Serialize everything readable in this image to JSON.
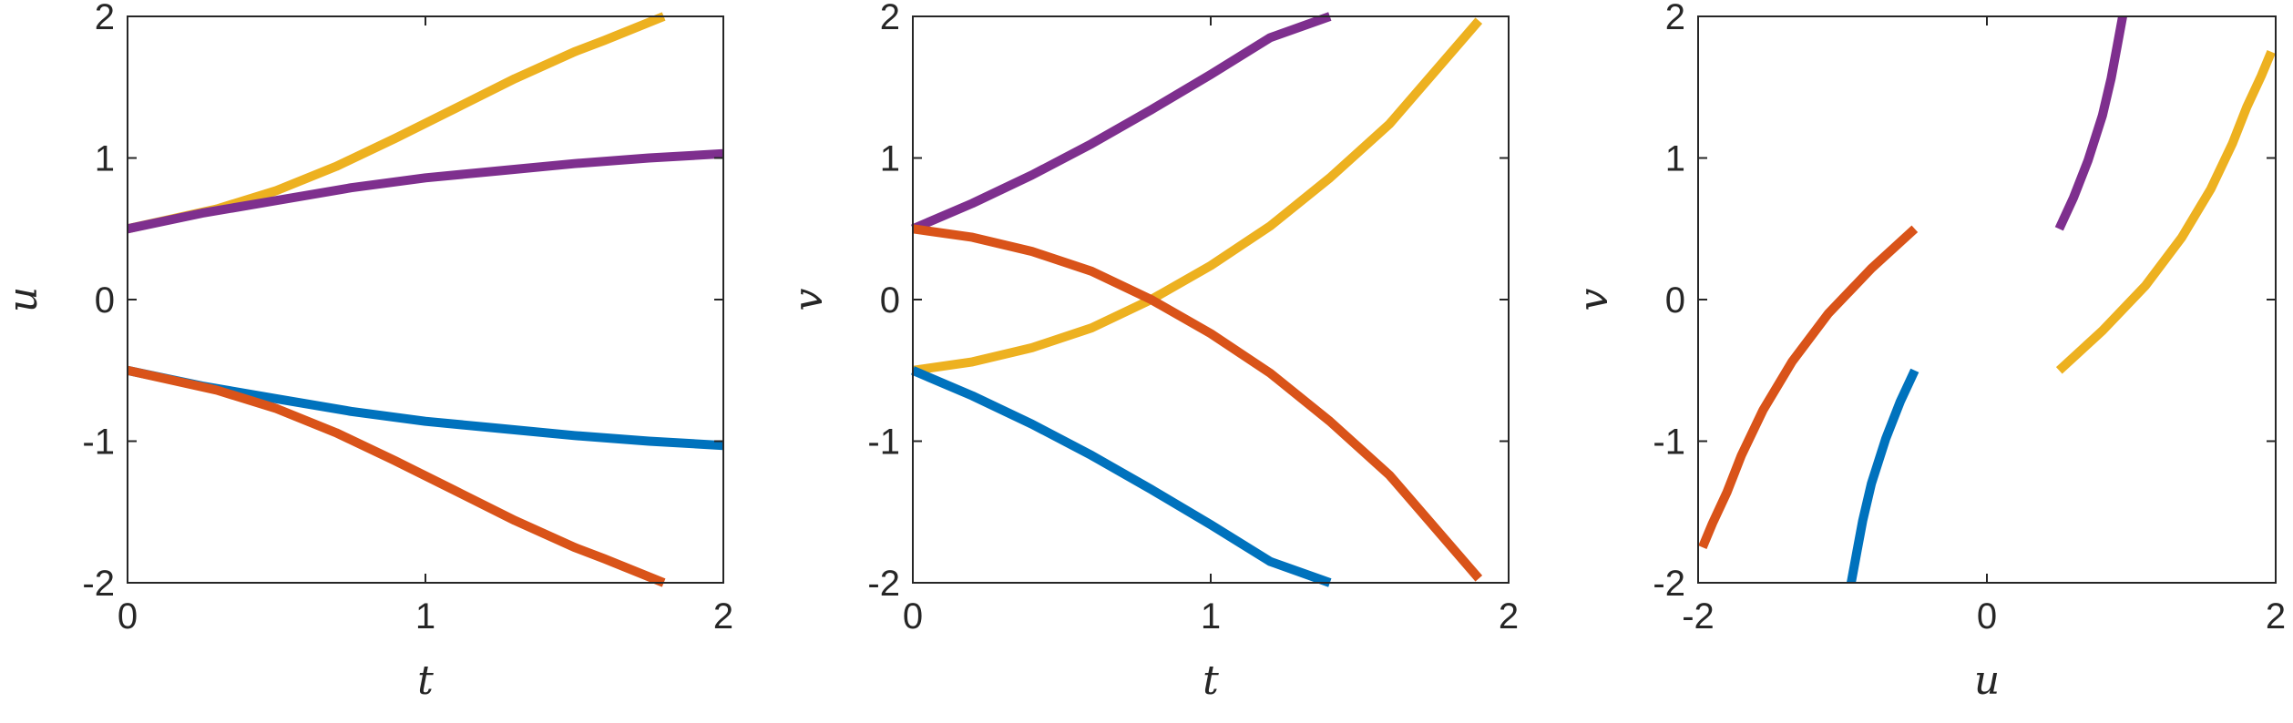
{
  "colors": {
    "blue": "#0072BD",
    "orange": "#D95319",
    "yellow": "#EDB120",
    "purple": "#7E2F8E"
  },
  "chart_data": [
    {
      "type": "line",
      "xlabel": "t",
      "ylabel": "u",
      "xlim": [
        0,
        2
      ],
      "ylim": [
        -2,
        2
      ],
      "xticks": [
        0,
        1,
        2
      ],
      "xtick_labels": [
        "0",
        "1",
        "2"
      ],
      "yticks": [
        2,
        1,
        0,
        -1,
        -2
      ],
      "ytick_labels": [
        "2",
        "1",
        "0",
        "-1",
        "-2"
      ],
      "grid": false,
      "series": [
        {
          "color": "#EDB120",
          "x": [
            0,
            0.3,
            0.5,
            0.7,
            0.9,
            1.1,
            1.3,
            1.5,
            1.6,
            1.8
          ],
          "y": [
            0.5,
            0.64,
            0.77,
            0.94,
            1.14,
            1.35,
            1.56,
            1.75,
            1.83,
            2.0
          ]
        },
        {
          "color": "#7E2F8E",
          "x": [
            0,
            0.25,
            0.5,
            0.75,
            1.0,
            1.25,
            1.5,
            1.75,
            2.0
          ],
          "y": [
            0.5,
            0.61,
            0.7,
            0.79,
            0.86,
            0.91,
            0.96,
            1.0,
            1.03
          ]
        },
        {
          "color": "#0072BD",
          "x": [
            0,
            0.25,
            0.5,
            0.75,
            1.0,
            1.25,
            1.5,
            1.75,
            2.0
          ],
          "y": [
            -0.5,
            -0.61,
            -0.7,
            -0.79,
            -0.86,
            -0.91,
            -0.96,
            -1.0,
            -1.03
          ]
        },
        {
          "color": "#D95319",
          "x": [
            0,
            0.3,
            0.5,
            0.7,
            0.9,
            1.1,
            1.3,
            1.5,
            1.6,
            1.8
          ],
          "y": [
            -0.5,
            -0.64,
            -0.77,
            -0.94,
            -1.14,
            -1.35,
            -1.56,
            -1.75,
            -1.83,
            -2.0
          ]
        }
      ]
    },
    {
      "type": "line",
      "xlabel": "t",
      "ylabel": "v",
      "xlim": [
        0,
        2
      ],
      "ylim": [
        -2,
        2
      ],
      "xticks": [
        0,
        1,
        2
      ],
      "xtick_labels": [
        "0",
        "1",
        "2"
      ],
      "yticks": [
        2,
        1,
        0,
        -1,
        -2
      ],
      "ytick_labels": [
        "2",
        "1",
        "0",
        "-1",
        "-2"
      ],
      "grid": false,
      "series": [
        {
          "color": "#7E2F8E",
          "x": [
            0,
            0.2,
            0.4,
            0.6,
            0.8,
            1.0,
            1.2,
            1.4
          ],
          "y": [
            0.5,
            0.68,
            0.88,
            1.1,
            1.34,
            1.59,
            1.85,
            2.0
          ]
        },
        {
          "color": "#EDB120",
          "x": [
            0,
            0.2,
            0.4,
            0.6,
            0.8,
            1.0,
            1.2,
            1.4,
            1.6,
            1.9
          ],
          "y": [
            -0.5,
            -0.44,
            -0.34,
            -0.2,
            0.0,
            0.24,
            0.52,
            0.86,
            1.24,
            1.97
          ]
        },
        {
          "color": "#D95319",
          "x": [
            0,
            0.2,
            0.4,
            0.6,
            0.8,
            1.0,
            1.2,
            1.4,
            1.6,
            1.9
          ],
          "y": [
            0.5,
            0.44,
            0.34,
            0.2,
            0.0,
            -0.24,
            -0.52,
            -0.86,
            -1.24,
            -1.97
          ]
        },
        {
          "color": "#0072BD",
          "x": [
            0,
            0.2,
            0.4,
            0.6,
            0.8,
            1.0,
            1.2,
            1.4
          ],
          "y": [
            -0.5,
            -0.68,
            -0.88,
            -1.1,
            -1.34,
            -1.59,
            -1.85,
            -2.0
          ]
        }
      ]
    },
    {
      "type": "line",
      "xlabel": "u",
      "ylabel": "v",
      "xlim": [
        -2,
        2
      ],
      "ylim": [
        -2,
        2
      ],
      "xticks": [
        -2,
        0,
        2
      ],
      "xtick_labels": [
        "-2",
        "0",
        "2"
      ],
      "yticks": [
        2,
        1,
        0,
        -1,
        -2
      ],
      "ytick_labels": [
        "2",
        "1",
        "0",
        "-1",
        "-2"
      ],
      "grid": false,
      "series": [
        {
          "color": "#7E2F8E",
          "x": [
            0.5,
            0.6,
            0.7,
            0.8,
            0.86,
            0.9,
            0.94
          ],
          "y": [
            0.5,
            0.72,
            0.98,
            1.3,
            1.56,
            1.78,
            2.0
          ]
        },
        {
          "color": "#EDB120",
          "x": [
            0.5,
            0.8,
            1.1,
            1.35,
            1.55,
            1.7,
            1.8,
            1.9,
            1.97
          ],
          "y": [
            -0.5,
            -0.22,
            0.1,
            0.44,
            0.78,
            1.1,
            1.36,
            1.58,
            1.75
          ]
        },
        {
          "color": "#D95319",
          "x": [
            -0.5,
            -0.8,
            -1.1,
            -1.35,
            -1.55,
            -1.7,
            -1.8,
            -1.9,
            -1.97
          ],
          "y": [
            0.5,
            0.22,
            -0.1,
            -0.44,
            -0.78,
            -1.1,
            -1.36,
            -1.58,
            -1.75
          ]
        },
        {
          "color": "#0072BD",
          "x": [
            -0.5,
            -0.6,
            -0.7,
            -0.8,
            -0.86,
            -0.9,
            -0.94
          ],
          "y": [
            -0.5,
            -0.72,
            -0.98,
            -1.3,
            -1.56,
            -1.78,
            -2.0
          ]
        }
      ]
    }
  ]
}
